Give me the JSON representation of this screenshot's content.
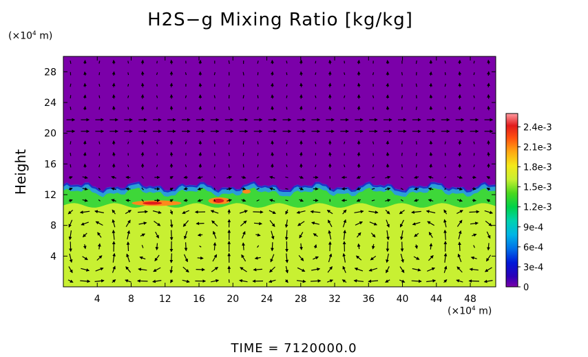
{
  "chart_data": {
    "type": "heatmap",
    "title": "H2S−g Mixing Ratio [kg/kg]",
    "ylabel": "Height",
    "x_unit_prefix": "(×10",
    "x_unit_exp": "4",
    "x_unit_suffix": " m)",
    "y_unit_prefix": "(×10",
    "y_unit_exp": "4",
    "y_unit_suffix": " m)",
    "xlim": [
      0,
      51
    ],
    "ylim": [
      0,
      30
    ],
    "x_ticks": [
      "4",
      "8",
      "12",
      "16",
      "20",
      "24",
      "28",
      "32",
      "36",
      "40",
      "44",
      "48"
    ],
    "y_ticks": [
      "4",
      "8",
      "12",
      "16",
      "20",
      "24",
      "28"
    ],
    "colorbar": {
      "range": [
        0,
        0.0026
      ],
      "tick_labels": [
        "0",
        "3e-4",
        "6e-4",
        "9e-4",
        "1.2e-3",
        "1.5e-3",
        "1.8e-3",
        "2.1e-3",
        "2.4e-3"
      ],
      "tick_values": [
        0,
        0.0003,
        0.0006,
        0.0009,
        0.0012,
        0.0015,
        0.0018,
        0.0021,
        0.0024
      ]
    },
    "field_layers": [
      {
        "name": "upper",
        "value": 0.0
      },
      {
        "name": "interface",
        "height_approx": 13
      },
      {
        "name": "transition",
        "value": 0.0013
      },
      {
        "name": "lower",
        "value": 0.0016
      }
    ]
  },
  "time_label": "TIME = 7120000.0",
  "colors": {
    "upper_layer": "#7b00a9",
    "lower_layer": "#c8f032",
    "transition": "#2fd43a",
    "interface": "#2a9fd6",
    "deep_blue": "#1c1cc8",
    "hot_orange": "#ff8a1c",
    "hot_red": "#e01b1b"
  }
}
